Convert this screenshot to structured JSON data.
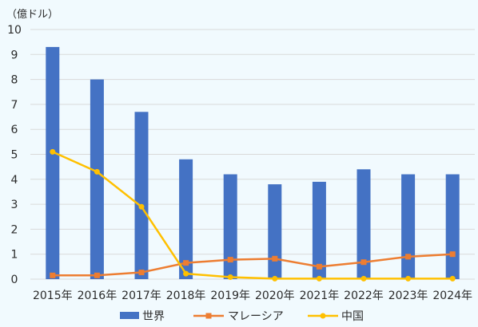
{
  "chart_data": {
    "type": "bar",
    "unit_label": "（億ドル）",
    "categories": [
      "2015年",
      "2016年",
      "2017年",
      "2018年",
      "2019年",
      "2020年",
      "2021年",
      "2022年",
      "2023年",
      "2024年"
    ],
    "ylim": [
      0,
      10
    ],
    "yticks": [
      0,
      1,
      2,
      3,
      4,
      5,
      6,
      7,
      8,
      9,
      10
    ],
    "grid": true,
    "legend_position": "bottom",
    "series": [
      {
        "name": "世界",
        "kind": "bar",
        "color": "#4472c4",
        "values": [
          9.3,
          8.0,
          6.7,
          4.8,
          4.2,
          3.8,
          3.9,
          4.4,
          4.2,
          4.2
        ]
      },
      {
        "name": "マレーシア",
        "kind": "line",
        "marker": "square",
        "color": "#ed7d31",
        "values": [
          0.15,
          0.15,
          0.27,
          0.65,
          0.78,
          0.82,
          0.5,
          0.68,
          0.9,
          1.0
        ]
      },
      {
        "name": "中国",
        "kind": "line",
        "marker": "circle",
        "color": "#ffc000",
        "values": [
          5.1,
          4.3,
          2.9,
          0.22,
          0.08,
          0.02,
          0.02,
          0.02,
          0.02,
          0.02
        ]
      }
    ]
  }
}
